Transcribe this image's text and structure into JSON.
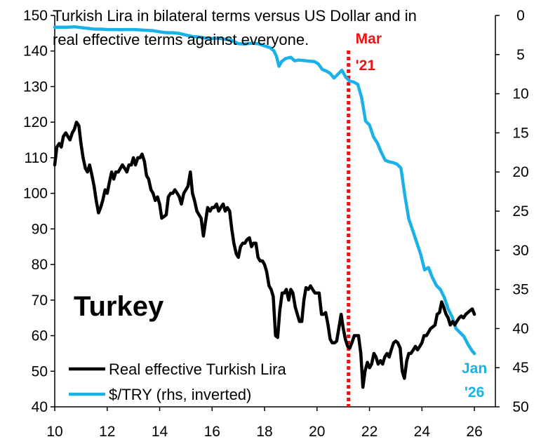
{
  "chart_data": {
    "type": "line",
    "title_line1": "Turkish Lira in bilateral terms versus US Dollar and in",
    "title_line2": "real effective terms against everyone.",
    "label": "Turkey",
    "x_ticks": [
      "10",
      "12",
      "14",
      "16",
      "18",
      "20",
      "22",
      "24",
      "26"
    ],
    "xlim": [
      10,
      26.8
    ],
    "y_left": {
      "ticks": [
        "150",
        "140",
        "130",
        "120",
        "110",
        "100",
        "90",
        "80",
        "70",
        "60",
        "50",
        "40"
      ],
      "lim": [
        40,
        150
      ]
    },
    "y_right": {
      "ticks": [
        "0",
        "5",
        "10",
        "15",
        "20",
        "25",
        "30",
        "35",
        "40",
        "45",
        "50"
      ],
      "lim": [
        0,
        50
      ],
      "inverted": true
    },
    "annotations": [
      {
        "text_line1": "Mar",
        "text_line2": "'21",
        "x": 21.2,
        "color": "#ee1111"
      },
      {
        "text_line1": "Jan",
        "text_line2": "'26",
        "x": 26.0,
        "color": "#1ab0e8"
      }
    ],
    "series": [
      {
        "name": "Real effective Turkish Lira",
        "axis": "left",
        "color": "#000000",
        "points": [
          [
            10.0,
            108
          ],
          [
            10.08,
            113
          ],
          [
            10.17,
            114
          ],
          [
            10.25,
            113
          ],
          [
            10.33,
            116
          ],
          [
            10.42,
            117
          ],
          [
            10.5,
            116
          ],
          [
            10.58,
            115
          ],
          [
            10.67,
            117
          ],
          [
            10.75,
            118
          ],
          [
            10.83,
            120
          ],
          [
            10.92,
            119
          ],
          [
            11.0,
            114
          ],
          [
            11.08,
            110
          ],
          [
            11.17,
            107
          ],
          [
            11.25,
            106
          ],
          [
            11.33,
            108
          ],
          [
            11.42,
            105
          ],
          [
            11.5,
            102
          ],
          [
            11.58,
            98
          ],
          [
            11.67,
            94.5
          ],
          [
            11.75,
            96
          ],
          [
            11.83,
            98
          ],
          [
            11.92,
            101
          ],
          [
            12.0,
            100
          ],
          [
            12.08,
            103
          ],
          [
            12.17,
            106
          ],
          [
            12.25,
            104
          ],
          [
            12.33,
            106
          ],
          [
            12.42,
            106
          ],
          [
            12.5,
            107
          ],
          [
            12.58,
            108
          ],
          [
            12.67,
            107
          ],
          [
            12.75,
            106
          ],
          [
            12.83,
            108
          ],
          [
            12.92,
            108
          ],
          [
            13.0,
            110
          ],
          [
            13.08,
            108
          ],
          [
            13.17,
            110
          ],
          [
            13.25,
            110
          ],
          [
            13.33,
            111
          ],
          [
            13.42,
            109
          ],
          [
            13.5,
            105
          ],
          [
            13.58,
            104
          ],
          [
            13.67,
            101
          ],
          [
            13.75,
            100
          ],
          [
            13.83,
            98
          ],
          [
            13.92,
            99
          ],
          [
            14.0,
            97
          ],
          [
            14.08,
            93
          ],
          [
            14.17,
            93.5
          ],
          [
            14.25,
            94
          ],
          [
            14.33,
            99
          ],
          [
            14.42,
            100
          ],
          [
            14.5,
            100
          ],
          [
            14.58,
            101
          ],
          [
            14.67,
            100
          ],
          [
            14.75,
            99
          ],
          [
            14.83,
            97
          ],
          [
            14.92,
            100
          ],
          [
            15.0,
            101
          ],
          [
            15.08,
            102
          ],
          [
            15.17,
            106
          ],
          [
            15.25,
            100
          ],
          [
            15.33,
            98
          ],
          [
            15.42,
            95
          ],
          [
            15.5,
            94
          ],
          [
            15.58,
            93
          ],
          [
            15.67,
            88
          ],
          [
            15.75,
            92
          ],
          [
            15.83,
            96
          ],
          [
            15.92,
            95
          ],
          [
            16.0,
            96
          ],
          [
            16.08,
            96
          ],
          [
            16.17,
            97
          ],
          [
            16.25,
            95
          ],
          [
            16.33,
            96
          ],
          [
            16.42,
            97
          ],
          [
            16.5,
            95
          ],
          [
            16.58,
            96
          ],
          [
            16.67,
            95
          ],
          [
            16.75,
            90
          ],
          [
            16.83,
            86
          ],
          [
            16.92,
            83
          ],
          [
            17.0,
            82
          ],
          [
            17.08,
            85
          ],
          [
            17.17,
            86
          ],
          [
            17.25,
            86
          ],
          [
            17.33,
            87
          ],
          [
            17.42,
            87.5
          ],
          [
            17.5,
            85
          ],
          [
            17.58,
            86
          ],
          [
            17.67,
            86
          ],
          [
            17.75,
            82
          ],
          [
            17.83,
            81
          ],
          [
            17.92,
            81
          ],
          [
            18.0,
            80
          ],
          [
            18.08,
            78
          ],
          [
            18.17,
            74
          ],
          [
            18.25,
            73
          ],
          [
            18.33,
            71
          ],
          [
            18.42,
            60
          ],
          [
            18.5,
            59.5
          ],
          [
            18.58,
            67
          ],
          [
            18.67,
            72
          ],
          [
            18.75,
            72
          ],
          [
            18.83,
            73
          ],
          [
            18.92,
            70
          ],
          [
            19.0,
            73
          ],
          [
            19.08,
            72
          ],
          [
            19.17,
            68
          ],
          [
            19.25,
            66
          ],
          [
            19.33,
            64
          ],
          [
            19.42,
            64
          ],
          [
            19.5,
            70
          ],
          [
            19.58,
            73.5
          ],
          [
            19.67,
            73
          ],
          [
            19.75,
            74
          ],
          [
            19.83,
            73
          ],
          [
            19.92,
            72
          ],
          [
            20.0,
            72
          ],
          [
            20.08,
            72
          ],
          [
            20.17,
            66
          ],
          [
            20.25,
            66
          ],
          [
            20.33,
            66.5
          ],
          [
            20.42,
            63
          ],
          [
            20.5,
            59
          ],
          [
            20.58,
            58
          ],
          [
            20.67,
            58
          ],
          [
            20.75,
            58.5
          ],
          [
            20.83,
            62
          ],
          [
            20.92,
            66
          ],
          [
            21.0,
            62
          ],
          [
            21.08,
            59
          ],
          [
            21.17,
            57
          ],
          [
            21.25,
            56.5
          ],
          [
            21.33,
            58
          ],
          [
            21.42,
            60
          ],
          [
            21.5,
            60
          ],
          [
            21.58,
            60
          ],
          [
            21.67,
            55
          ],
          [
            21.75,
            45.5
          ],
          [
            21.83,
            50
          ],
          [
            21.92,
            52.5
          ],
          [
            22.0,
            51
          ],
          [
            22.08,
            52
          ],
          [
            22.17,
            55
          ],
          [
            22.25,
            54
          ],
          [
            22.33,
            52
          ],
          [
            22.42,
            53
          ],
          [
            22.5,
            52
          ],
          [
            22.58,
            54
          ],
          [
            22.67,
            55
          ],
          [
            22.75,
            54
          ],
          [
            22.83,
            56
          ],
          [
            22.92,
            58
          ],
          [
            23.0,
            58.5
          ],
          [
            23.08,
            58
          ],
          [
            23.17,
            56.5
          ],
          [
            23.25,
            50
          ],
          [
            23.33,
            48
          ],
          [
            23.42,
            53
          ],
          [
            23.5,
            55
          ],
          [
            23.58,
            55
          ],
          [
            23.67,
            56
          ],
          [
            23.75,
            57
          ],
          [
            23.83,
            56
          ],
          [
            23.92,
            57
          ],
          [
            24.0,
            58
          ],
          [
            24.08,
            60
          ],
          [
            24.17,
            60
          ],
          [
            24.25,
            61
          ],
          [
            24.33,
            62
          ],
          [
            24.42,
            62.5
          ],
          [
            24.5,
            63
          ],
          [
            24.58,
            66
          ],
          [
            24.67,
            66.5
          ],
          [
            24.75,
            69.5
          ],
          [
            24.83,
            68
          ],
          [
            24.92,
            66
          ],
          [
            25.0,
            65
          ],
          [
            25.08,
            63
          ],
          [
            25.17,
            64
          ],
          [
            25.25,
            63
          ],
          [
            25.33,
            64
          ],
          [
            25.42,
            65
          ],
          [
            25.5,
            65.5
          ],
          [
            25.58,
            65
          ],
          [
            25.67,
            66
          ],
          [
            25.75,
            66.5
          ],
          [
            25.83,
            67
          ],
          [
            25.92,
            67.5
          ],
          [
            26.0,
            66
          ]
        ]
      },
      {
        "name": "$/TRY (rhs, inverted)",
        "axis": "right",
        "color": "#1ab0e8",
        "points": [
          [
            10.0,
            1.5
          ],
          [
            10.25,
            1.5
          ],
          [
            10.5,
            1.5
          ],
          [
            10.75,
            1.45
          ],
          [
            11.0,
            1.55
          ],
          [
            11.25,
            1.65
          ],
          [
            11.5,
            1.75
          ],
          [
            11.75,
            1.75
          ],
          [
            12.0,
            1.8
          ],
          [
            12.25,
            1.8
          ],
          [
            12.5,
            1.82
          ],
          [
            12.75,
            1.8
          ],
          [
            13.0,
            1.8
          ],
          [
            13.25,
            1.85
          ],
          [
            13.5,
            1.9
          ],
          [
            13.75,
            1.95
          ],
          [
            14.0,
            2.1
          ],
          [
            14.25,
            2.2
          ],
          [
            14.5,
            2.2
          ],
          [
            14.75,
            2.3
          ],
          [
            15.0,
            2.5
          ],
          [
            15.25,
            2.7
          ],
          [
            15.5,
            2.75
          ],
          [
            15.75,
            2.9
          ],
          [
            16.0,
            2.95
          ],
          [
            16.25,
            2.9
          ],
          [
            16.5,
            3.05
          ],
          [
            16.75,
            3.2
          ],
          [
            17.0,
            3.6
          ],
          [
            17.25,
            3.65
          ],
          [
            17.5,
            3.55
          ],
          [
            17.75,
            3.6
          ],
          [
            18.0,
            3.9
          ],
          [
            18.2,
            4.1
          ],
          [
            18.35,
            4.5
          ],
          [
            18.45,
            5.2
          ],
          [
            18.55,
            6.5
          ],
          [
            18.65,
            5.9
          ],
          [
            18.8,
            5.5
          ],
          [
            19.0,
            5.35
          ],
          [
            19.15,
            5.8
          ],
          [
            19.3,
            5.7
          ],
          [
            19.5,
            5.75
          ],
          [
            19.7,
            5.85
          ],
          [
            19.9,
            5.9
          ],
          [
            20.05,
            6.2
          ],
          [
            20.2,
            6.9
          ],
          [
            20.35,
            7.1
          ],
          [
            20.5,
            7.4
          ],
          [
            20.65,
            8.0
          ],
          [
            20.8,
            7.5
          ],
          [
            20.95,
            7.0
          ],
          [
            21.1,
            7.9
          ],
          [
            21.25,
            8.4
          ],
          [
            21.4,
            8.5
          ],
          [
            21.55,
            8.8
          ],
          [
            21.7,
            10.5
          ],
          [
            21.85,
            13.5
          ],
          [
            22.0,
            14.0
          ],
          [
            22.15,
            15.5
          ],
          [
            22.3,
            16.3
          ],
          [
            22.45,
            17.5
          ],
          [
            22.6,
            18.5
          ],
          [
            22.75,
            18.7
          ],
          [
            22.9,
            18.8
          ],
          [
            23.05,
            19.0
          ],
          [
            23.2,
            19.5
          ],
          [
            23.35,
            23.0
          ],
          [
            23.5,
            26.0
          ],
          [
            23.65,
            27.5
          ],
          [
            23.8,
            29.0
          ],
          [
            23.95,
            30.5
          ],
          [
            24.1,
            32.5
          ],
          [
            24.25,
            32.2
          ],
          [
            24.4,
            33.5
          ],
          [
            24.55,
            34.5
          ],
          [
            24.7,
            35.0
          ],
          [
            24.85,
            36.0
          ],
          [
            25.0,
            37.5
          ],
          [
            25.15,
            38.5
          ],
          [
            25.3,
            40.0
          ],
          [
            25.45,
            40.5
          ],
          [
            25.6,
            41.0
          ],
          [
            25.75,
            42.0
          ],
          [
            25.9,
            42.8
          ],
          [
            26.0,
            43.2
          ]
        ]
      }
    ]
  }
}
